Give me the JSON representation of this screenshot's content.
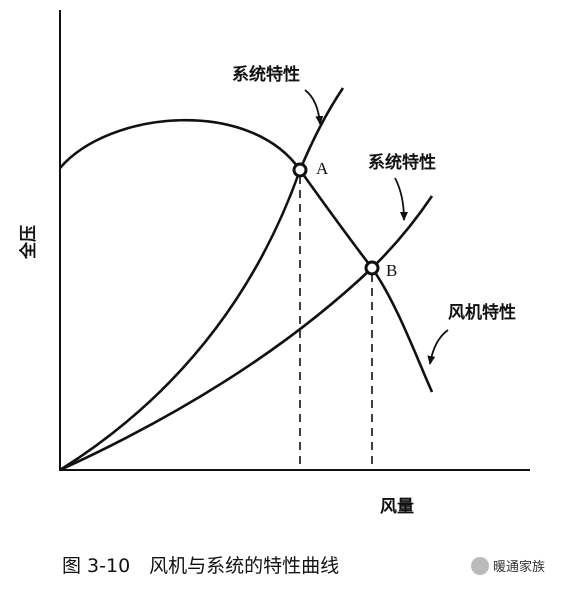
{
  "diagram": {
    "labels": {
      "system_curve_1": "系统特性",
      "system_curve_2": "系统特性",
      "fan_curve": "风机特性",
      "point_a": "A",
      "point_b": "B",
      "y_axis": "全压",
      "x_axis": "风量"
    }
  },
  "caption": "图 3-10　风机与系统的特性曲线",
  "watermark": "暖通家族"
}
